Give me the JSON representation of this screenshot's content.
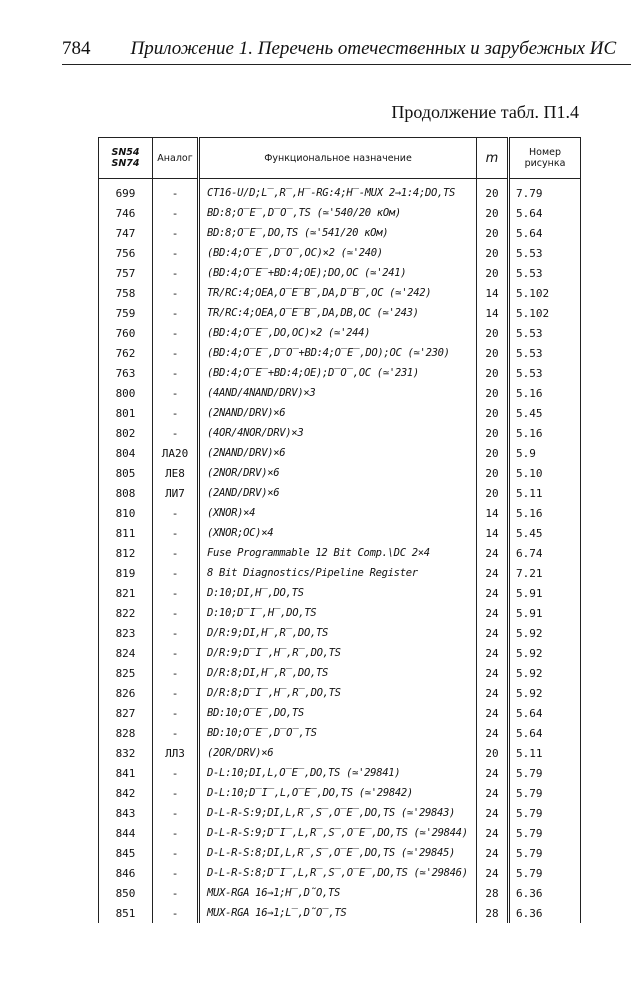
{
  "header": {
    "page_number": "784",
    "running_title": "Приложение 1. Перечень отечественных и зарубежных ИС"
  },
  "caption": "Продолжение табл. П1.4",
  "table": {
    "columns": [
      [
        "SN54",
        "SN74"
      ],
      "Аналог",
      "Функциональное назначение",
      "m",
      [
        "Номер",
        "рисунка"
      ]
    ],
    "rows": [
      [
        "699",
        "-",
        "CT16-U/D;L̅,R̅,H̅-RG:4;H̅-MUX 2→1:4;DO,TS",
        "20",
        "7.79"
      ],
      [
        "746",
        "-",
        "BD:8;O̅E̅,D̅O̅,TS (≃'540/20 кОм)",
        "20",
        "5.64"
      ],
      [
        "747",
        "-",
        "BD:8;O̅E̅,DO,TS (≃'541/20 кОм)",
        "20",
        "5.64"
      ],
      [
        "756",
        "-",
        "(BD:4;O̅E̅,D̅O̅,OC)×2 (≃'240)",
        "20",
        "5.53"
      ],
      [
        "757",
        "-",
        "(BD:4;O̅E̅+BD:4;OE);DO,OC (≃'241)",
        "20",
        "5.53"
      ],
      [
        "758",
        "-",
        "TR/RC:4;OEA,O̅E̅B̅,DA,D̅B̅,OC (≃'242)",
        "14",
        "5.102"
      ],
      [
        "759",
        "-",
        "TR/RC:4;OEA,O̅E̅B̅,DA,DB,OC (≃'243)",
        "14",
        "5.102"
      ],
      [
        "760",
        "-",
        "(BD:4;O̅E̅,DO,OC)×2 (≃'244)",
        "20",
        "5.53"
      ],
      [
        "762",
        "-",
        "(BD:4;O̅E̅,D̅O̅+BD:4;O̅E̅,DO);OC (≃'230)",
        "20",
        "5.53"
      ],
      [
        "763",
        "-",
        "(BD:4;O̅E̅+BD:4;OE);D̅O̅,OC (≃'231)",
        "20",
        "5.53"
      ],
      [
        "800",
        "-",
        "(4AND/4NAND/DRV)×3",
        "20",
        "5.16"
      ],
      [
        "801",
        "-",
        "(2NAND/DRV)×6",
        "20",
        "5.45"
      ],
      [
        "802",
        "-",
        "(4OR/4NOR/DRV)×3",
        "20",
        "5.16"
      ],
      [
        "804",
        "ЛА20",
        "(2NAND/DRV)×6",
        "20",
        "5.9"
      ],
      [
        "805",
        "ЛЕ8",
        "(2NOR/DRV)×6",
        "20",
        "5.10"
      ],
      [
        "808",
        "ЛИ7",
        "(2AND/DRV)×6",
        "20",
        "5.11"
      ],
      [
        "810",
        "-",
        "(XNOR)×4",
        "14",
        "5.16"
      ],
      [
        "811",
        "-",
        "(XNOR;OC)×4",
        "14",
        "5.45"
      ],
      [
        "812",
        "-",
        "Fuse Programmable 12 Bit Comp.\\DC 2×4",
        "24",
        "6.74"
      ],
      [
        "819",
        "-",
        "8 Bit Diagnostics/Pipeline Register",
        "24",
        "7.21"
      ],
      [
        "821",
        "-",
        "D:10;DI,H̅,DO,TS",
        "24",
        "5.91"
      ],
      [
        "822",
        "-",
        "D:10;D̅I̅,H̅,DO,TS",
        "24",
        "5.91"
      ],
      [
        "823",
        "-",
        "D/R:9;DI,H̅,R̅,DO,TS",
        "24",
        "5.92"
      ],
      [
        "824",
        "-",
        "D/R:9;D̅I̅,H̅,R̅,DO,TS",
        "24",
        "5.92"
      ],
      [
        "825",
        "-",
        "D/R:8;DI,H̅,R̅,DO,TS",
        "24",
        "5.92"
      ],
      [
        "826",
        "-",
        "D/R:8;D̅I̅,H̅,R̅,DO,TS",
        "24",
        "5.92"
      ],
      [
        "827",
        "-",
        "BD:10;O̅E̅,DO,TS",
        "24",
        "5.64"
      ],
      [
        "828",
        "-",
        "BD:10;O̅E̅,D̅O̅,TS",
        "24",
        "5.64"
      ],
      [
        "832",
        "ЛЛ3",
        "(2OR/DRV)×6",
        "20",
        "5.11"
      ],
      [
        "841",
        "-",
        "D-L:10;DI,L,O̅E̅,DO,TS (≃'29841)",
        "24",
        "5.79"
      ],
      [
        "842",
        "-",
        "D-L:10;D̅I̅,L,O̅E̅,DO,TS (≃'29842)",
        "24",
        "5.79"
      ],
      [
        "843",
        "-",
        "D-L-R-S:9;DI,L,R̅,S̅,O̅E̅,DO,TS (≃'29843)",
        "24",
        "5.79"
      ],
      [
        "844",
        "-",
        "D-L-R-S:9;D̅I̅,L,R̅,S̅,O̅E̅,DO,TS (≃'29844)",
        "24",
        "5.79"
      ],
      [
        "845",
        "-",
        "D-L-R-S:8;DI,L,R̅,S̅,O̅E̅,DO,TS (≃'29845)",
        "24",
        "5.79"
      ],
      [
        "846",
        "-",
        "D-L-R-S:8;D̅I̅,L,R̅,S̅,O̅E̅,DO,TS (≃'29846)",
        "24",
        "5.79"
      ],
      [
        "850",
        "-",
        "MUX-RGA 16→1;H̅,D̃O,TS",
        "28",
        "6.36"
      ],
      [
        "851",
        "-",
        "MUX-RGA 16→1;L̅,D̃O̅,TS",
        "28",
        "6.36"
      ]
    ]
  }
}
